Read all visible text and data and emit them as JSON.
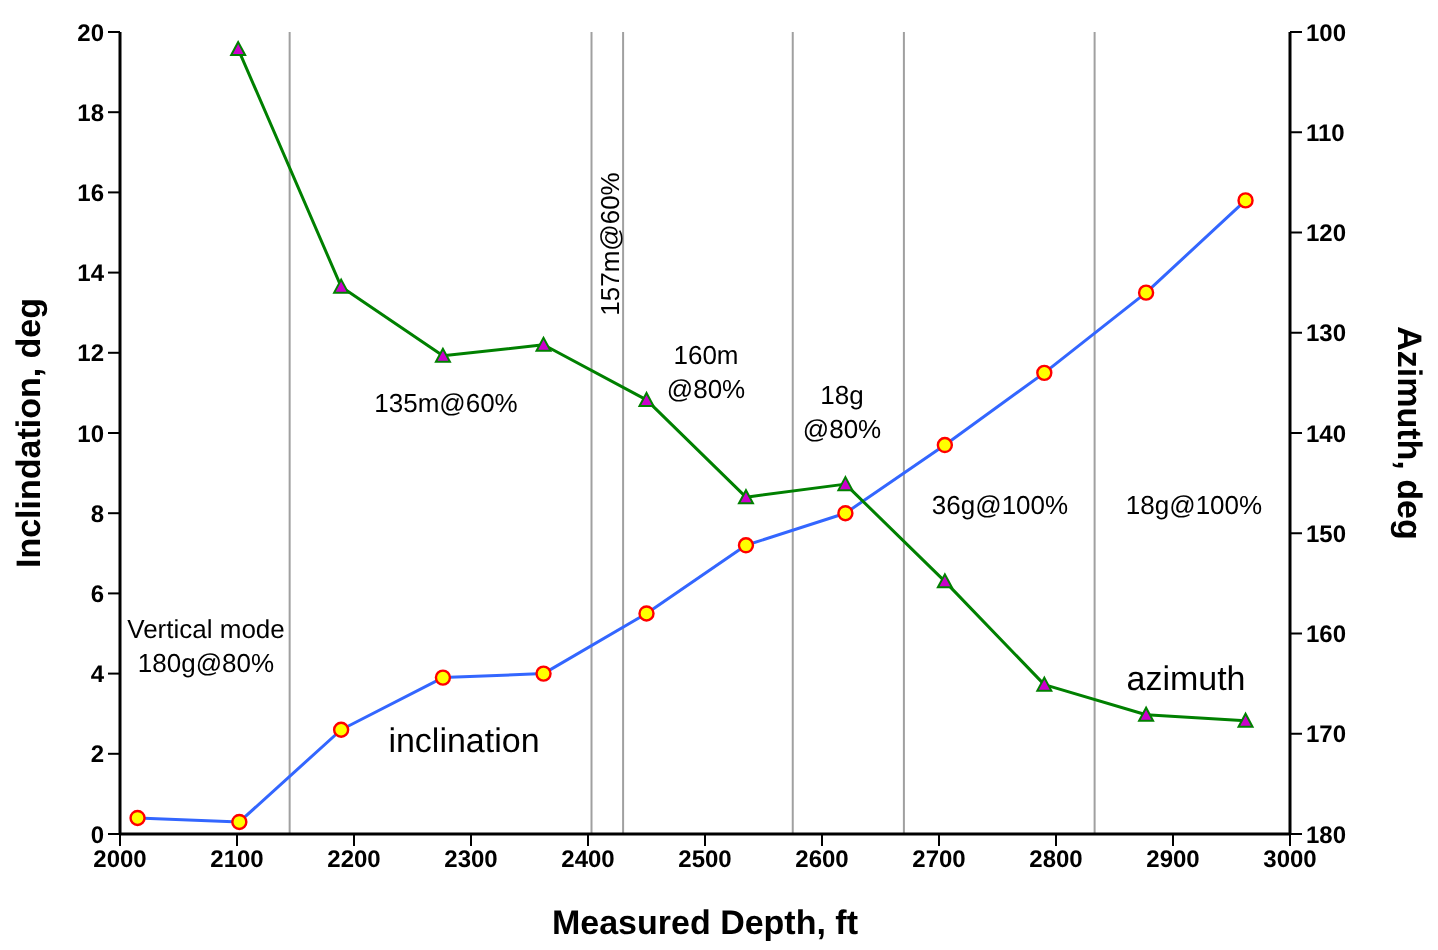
{
  "chart_data": {
    "type": "line",
    "xlabel": "Measured Depth, ft",
    "ylabel": "Inclindation, deg",
    "y2label": "Azimuth, deg",
    "xlim": [
      2000,
      3000
    ],
    "xticks": [
      2000,
      2100,
      2200,
      2300,
      2400,
      2500,
      2600,
      2700,
      2800,
      2900,
      3000
    ],
    "ylim": [
      0,
      20
    ],
    "yticks": [
      0,
      2,
      4,
      6,
      8,
      10,
      12,
      14,
      16,
      18,
      20
    ],
    "y2lim": [
      180,
      100
    ],
    "y2ticks": [
      100,
      110,
      120,
      130,
      140,
      150,
      160,
      170,
      180
    ],
    "series": [
      {
        "name": "inclination",
        "color": "#3366ff",
        "marker": "circle",
        "x": [
          2015,
          2102,
          2189,
          2276,
          2362,
          2450,
          2535,
          2620,
          2705,
          2790,
          2877,
          2962
        ],
        "values": [
          0.4,
          0.3,
          2.6,
          3.9,
          4.0,
          5.5,
          7.2,
          8.0,
          9.7,
          11.5,
          13.5,
          15.8
        ]
      },
      {
        "name": "azimuth",
        "color": "#008000",
        "marker": "triangle",
        "axis": "y2",
        "x": [
          2101,
          2189,
          2276,
          2362,
          2450,
          2535,
          2620,
          2705,
          2790,
          2877,
          2962
        ],
        "values": [
          101.7,
          125.4,
          132.3,
          131.2,
          136.7,
          146.4,
          145.1,
          154.8,
          165.1,
          168.1,
          168.7
        ]
      }
    ],
    "ref_lines": [
      {
        "axis": "x",
        "value": 2145,
        "color": "#a0a0a0"
      },
      {
        "axis": "x",
        "value": 2403,
        "color": "#a0a0a0"
      },
      {
        "axis": "x",
        "value": 2430,
        "color": "#a0a0a0"
      },
      {
        "axis": "x",
        "value": 2575,
        "color": "#a0a0a0"
      },
      {
        "axis": "x",
        "value": 2670,
        "color": "#a0a0a0"
      },
      {
        "axis": "x",
        "value": 2833,
        "color": "#a0a0a0"
      }
    ],
    "annotations": [
      "Vertical mode\n180g@80%",
      "135m@60%",
      "157m@60%",
      "160m\n@80%",
      "18g\n@80%",
      "36g@100%",
      "18g@100%"
    ]
  }
}
